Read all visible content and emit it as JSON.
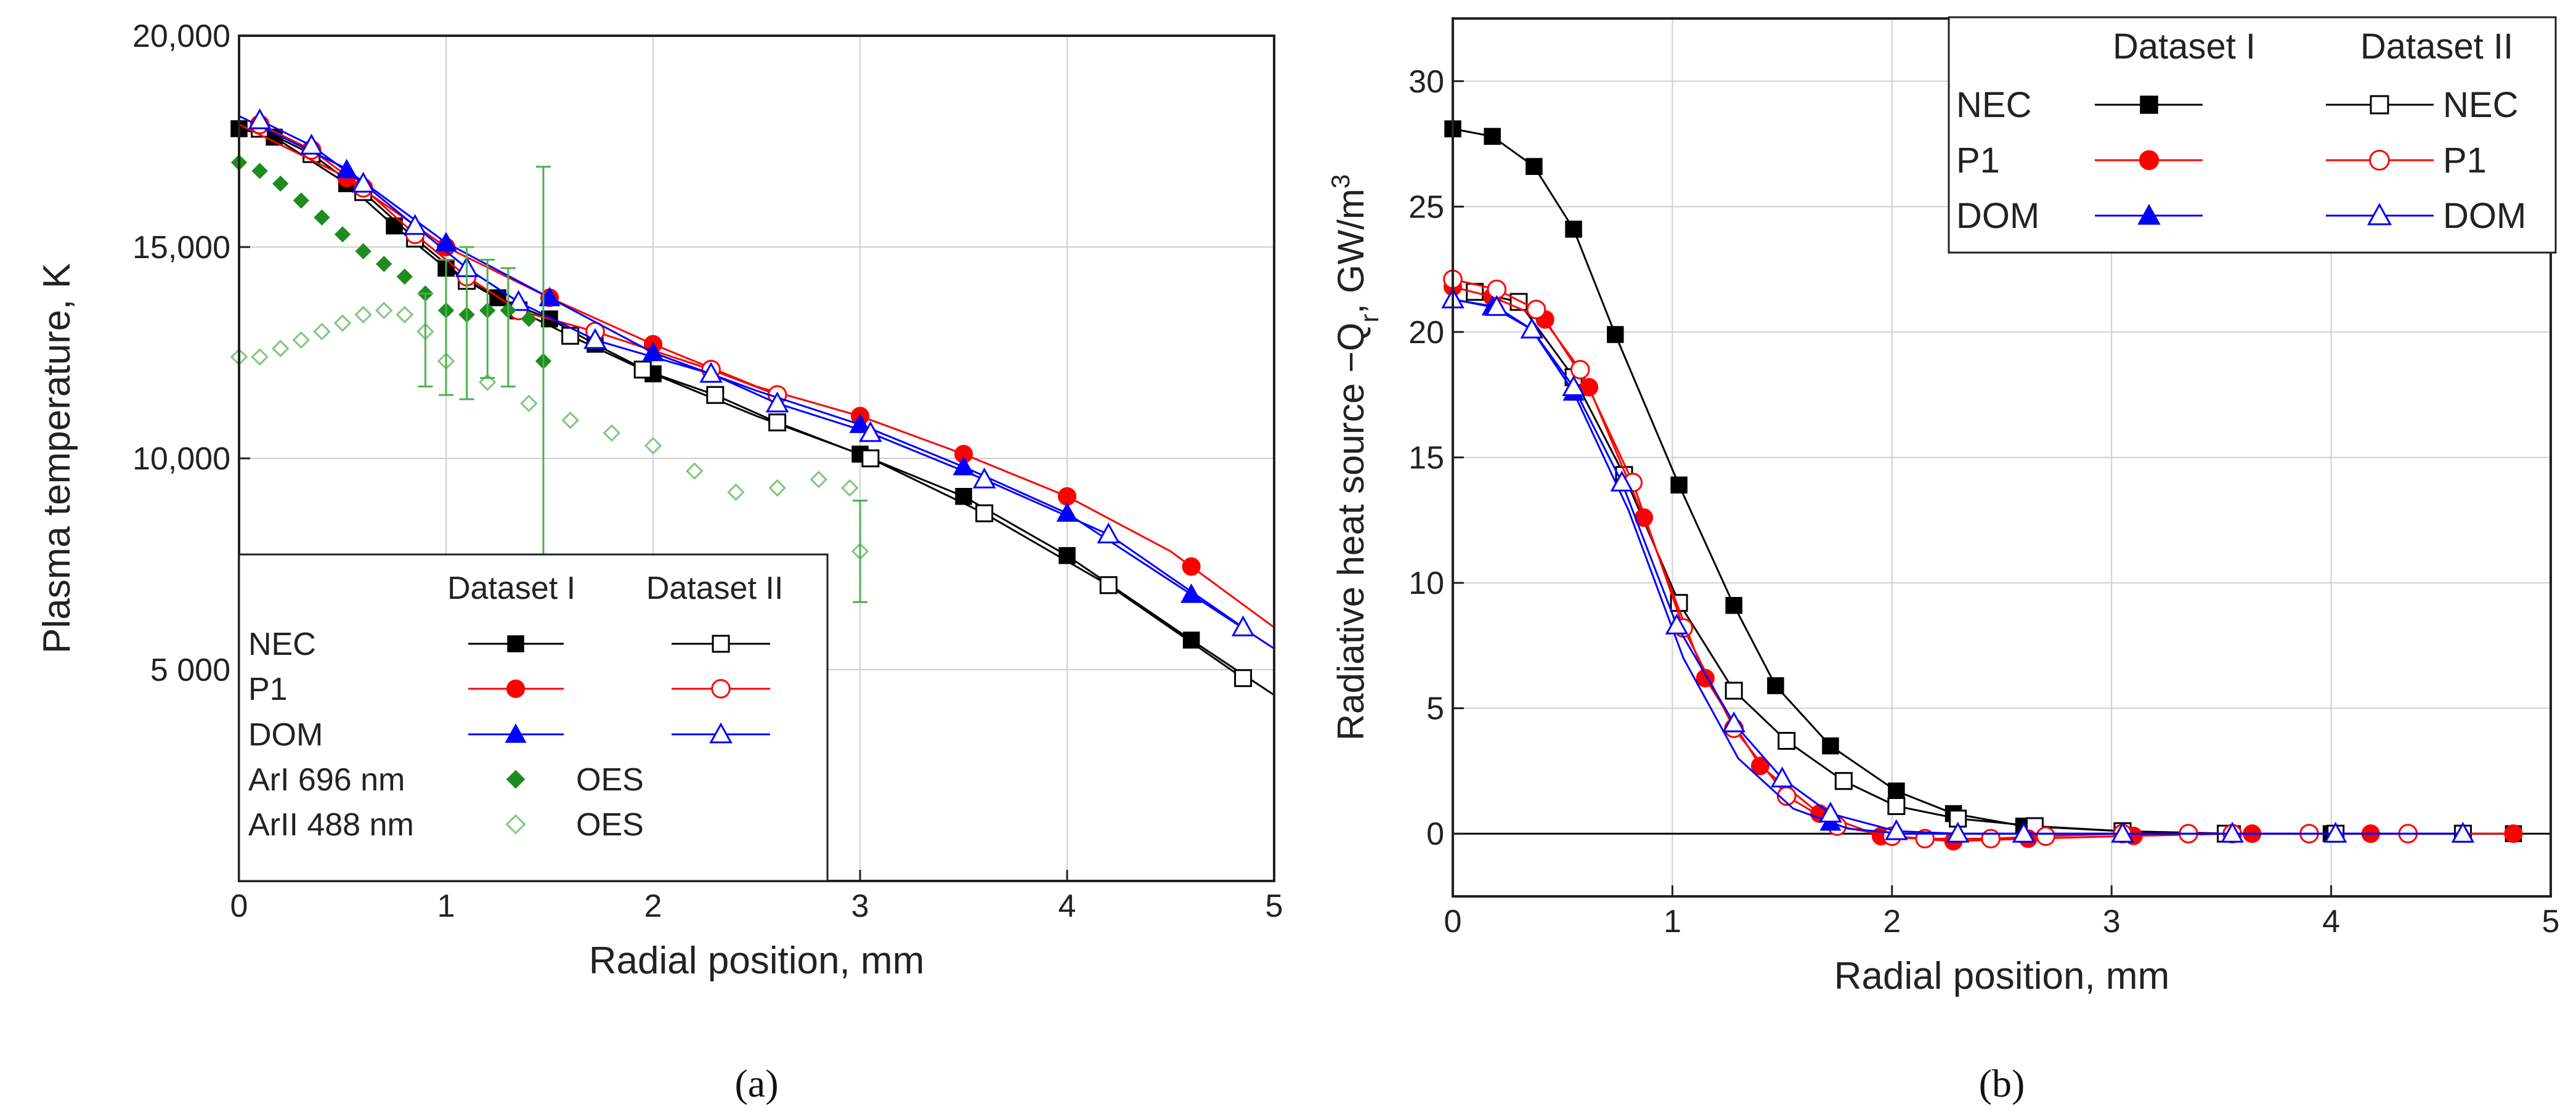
{
  "chart_data": [
    {
      "type": "line",
      "panel_label": "(a)",
      "xlabel": "Radial position, mm",
      "ylabel": "Plasma temperature, K",
      "xlim": [
        0,
        5
      ],
      "ylim": [
        0,
        20000
      ],
      "x_ticks": [
        "0",
        "1",
        "2",
        "3",
        "4",
        "5"
      ],
      "y_ticks": [
        {
          "value": 5000,
          "label": "5 000"
        },
        {
          "value": 10000,
          "label": "10,000"
        },
        {
          "value": 15000,
          "label": "15,000"
        },
        {
          "value": 20000,
          "label": "20,000"
        }
      ],
      "grid": true,
      "legend": {
        "position": "bottom-left",
        "header": [
          "Dataset I",
          "Dataset II"
        ],
        "rows": [
          "NEC",
          "P1",
          "DOM",
          "ArI 696 nm",
          "ArII 488 nm"
        ],
        "oes_label": "OES"
      },
      "series": [
        {
          "name": "NEC (Dataset I)",
          "color": "#000000",
          "marker": "square-filled",
          "x": [
            0,
            0.17,
            0.52,
            0.75,
            1.0,
            1.25,
            1.5,
            1.72,
            2.0,
            2.5,
            3.0,
            3.5,
            4.0,
            4.6,
            5.0
          ],
          "y": [
            17800,
            17600,
            16500,
            15500,
            14500,
            13800,
            13300,
            12700,
            12000,
            11000,
            10100,
            9100,
            7700,
            5700,
            4400
          ],
          "markers_x": [
            0,
            0.17,
            0.52,
            0.75,
            1.0,
            1.25,
            1.5,
            1.72,
            2.0,
            3.0,
            3.5,
            4.0,
            4.6
          ]
        },
        {
          "name": "NEC (Dataset II)",
          "color": "#000000",
          "marker": "square-open",
          "x": [
            0.1,
            0.35,
            0.6,
            0.85,
            1.1,
            1.35,
            1.6,
            1.95,
            2.3,
            2.6,
            3.05,
            3.6,
            4.2,
            4.85
          ],
          "y": [
            17800,
            17200,
            16300,
            15200,
            14200,
            13500,
            12900,
            12100,
            11500,
            10850,
            10000,
            8700,
            7000,
            4800
          ]
        },
        {
          "name": "P1 (Dataset I)",
          "color": "#ff0000",
          "marker": "circle-filled",
          "x": [
            0,
            0.5,
            1.0,
            1.5,
            2.0,
            2.5,
            3.0,
            3.5,
            4.0,
            4.5,
            5.0
          ],
          "y": [
            17900,
            16700,
            15000,
            13800,
            12700,
            11700,
            11000,
            10100,
            9100,
            7800,
            6000
          ],
          "markers_x": [
            0.52,
            1.0,
            1.5,
            2.0,
            3.0,
            3.5,
            4.0,
            4.6
          ]
        },
        {
          "name": "P1 (Dataset II)",
          "color": "#ff0000",
          "marker": "circle-open",
          "x": [
            0.1,
            0.35,
            0.6,
            0.85,
            1.1,
            1.35,
            1.72,
            2.28,
            2.6
          ],
          "y": [
            17900,
            17300,
            16400,
            15300,
            14300,
            13500,
            13000,
            12100,
            11500
          ]
        },
        {
          "name": "DOM (Dataset I)",
          "color": "#0000ff",
          "marker": "triangle-filled",
          "x": [
            0,
            0.5,
            1.0,
            1.5,
            2.0,
            2.5,
            3.0,
            3.5,
            4.0,
            4.5,
            5.0
          ],
          "y": [
            18100,
            16900,
            15100,
            13800,
            12500,
            11600,
            10800,
            9800,
            8700,
            7100,
            5500
          ],
          "markers_x": [
            0.52,
            1.0,
            1.5,
            2.0,
            3.0,
            3.5,
            4.0,
            4.6
          ]
        },
        {
          "name": "DOM (Dataset II)",
          "color": "#0000ff",
          "marker": "triangle-open",
          "x": [
            0.1,
            0.35,
            0.6,
            0.85,
            1.1,
            1.35,
            1.72,
            2.28,
            2.6,
            3.05,
            3.6,
            4.2,
            4.85
          ],
          "y": [
            18000,
            17400,
            16500,
            15500,
            14500,
            13700,
            12800,
            12000,
            11300,
            10600,
            9500,
            8200,
            6000
          ]
        },
        {
          "name": "ArI 696 nm OES",
          "color": "#1e8c1e",
          "marker": "diamond-filled",
          "x": [
            0,
            0.1,
            0.2,
            0.3,
            0.4,
            0.5,
            0.6,
            0.7,
            0.8,
            0.9,
            1.0,
            1.1,
            1.2,
            1.3,
            1.4,
            1.47
          ],
          "y": [
            17000,
            16800,
            16500,
            16100,
            15700,
            15300,
            14900,
            14600,
            14300,
            13900,
            13500,
            13400,
            13500,
            13500,
            13300,
            12300
          ]
        },
        {
          "name": "ArII 488 nm OES",
          "color": "#7ec87e",
          "marker": "diamond-open",
          "x": [
            0,
            0.1,
            0.2,
            0.3,
            0.4,
            0.5,
            0.6,
            0.7,
            0.8,
            0.9,
            1.0,
            1.2,
            1.4,
            1.6,
            1.8,
            2.0,
            2.2,
            2.4,
            2.6,
            2.8,
            2.95,
            3.0
          ],
          "y": [
            12400,
            12400,
            12600,
            12800,
            13000,
            13200,
            13400,
            13500,
            13400,
            13000,
            12300,
            11800,
            11300,
            10900,
            10600,
            10300,
            9700,
            9200,
            9300,
            9500,
            9300,
            7800
          ]
        }
      ],
      "error_bars": [
        {
          "x": 0.9,
          "y": 12800,
          "err": 1100
        },
        {
          "x": 1.0,
          "y": 13100,
          "err": 1600
        },
        {
          "x": 1.1,
          "y": 13200,
          "err": 1800
        },
        {
          "x": 1.2,
          "y": 13300,
          "err": 1400
        },
        {
          "x": 1.3,
          "y": 13100,
          "err": 1400
        },
        {
          "x": 1.47,
          "y": 12300,
          "err": 4600
        },
        {
          "x": 3.0,
          "y": 7800,
          "err": 1200
        }
      ]
    },
    {
      "type": "line",
      "panel_label": "(b)",
      "xlabel": "Radial position, mm",
      "ylabel_parts": [
        "Radiative heat source −Q",
        "r",
        ", GW/m",
        "3"
      ],
      "xlim": [
        0,
        5
      ],
      "ylim": [
        -2.5,
        32.5
      ],
      "x_ticks": [
        "0",
        "1",
        "2",
        "3",
        "4",
        "5"
      ],
      "y_ticks": [
        "0",
        "5",
        "10",
        "15",
        "20",
        "25",
        "30"
      ],
      "grid": true,
      "legend": {
        "position": "top-right",
        "header": [
          "Dataset I",
          "Dataset II"
        ],
        "rows": [
          "NEC",
          "P1",
          "DOM"
        ]
      },
      "series": [
        {
          "name": "NEC (Dataset I)",
          "color": "#000000",
          "marker": "square-filled",
          "x": [
            0,
            0.18,
            0.37,
            0.55,
            0.74,
            1.03,
            1.28,
            1.47,
            1.72,
            2.02,
            2.28,
            2.6,
            3.05,
            3.55,
            4.0,
            4.6,
            4.83
          ],
          "y": [
            28.1,
            27.8,
            26.6,
            24.1,
            19.9,
            13.9,
            9.1,
            5.9,
            3.5,
            1.7,
            0.8,
            0.3,
            0.1,
            0.0,
            0.0,
            0.0,
            0.0
          ]
        },
        {
          "name": "NEC (Dataset II)",
          "color": "#000000",
          "marker": "square-open",
          "x": [
            0.1,
            0.3,
            0.55,
            0.78,
            1.03,
            1.28,
            1.52,
            1.78,
            2.02,
            2.3,
            2.65,
            3.05,
            3.52,
            4.02,
            4.6
          ],
          "y": [
            21.6,
            21.2,
            18.2,
            14.3,
            9.2,
            5.7,
            3.7,
            2.1,
            1.1,
            0.6,
            0.3,
            0.1,
            0.0,
            0.0,
            0.0
          ]
        },
        {
          "name": "P1 (Dataset I)",
          "color": "#ff0000",
          "marker": "circle-filled",
          "x": [
            0,
            0.18,
            0.42,
            0.62,
            0.87,
            1.15,
            1.4,
            1.67,
            1.95,
            2.28,
            2.62,
            3.05,
            3.55,
            4.0,
            4.6,
            4.83
          ],
          "y": [
            21.8,
            21.4,
            20.5,
            17.8,
            12.6,
            6.2,
            2.7,
            0.8,
            -0.1,
            -0.3,
            -0.2,
            -0.1,
            0.0,
            0.0,
            0.0,
            0.0
          ],
          "markers_x": [
            0,
            0.18,
            0.42,
            0.62,
            0.87,
            1.15,
            1.4,
            1.67,
            1.95,
            2.28,
            2.62,
            3.1,
            3.64,
            4.18,
            4.83
          ]
        },
        {
          "name": "P1 (Dataset II)",
          "color": "#ff0000",
          "marker": "circle-open",
          "x": [
            0,
            0.2,
            0.38,
            0.58,
            0.82,
            1.05,
            1.28,
            1.52,
            1.75,
            2.0,
            2.15,
            2.45,
            2.7,
            3.05,
            3.35,
            3.55,
            3.9,
            4.35
          ],
          "y": [
            22.1,
            21.7,
            20.9,
            18.5,
            14.0,
            8.2,
            4.2,
            1.5,
            0.3,
            -0.1,
            -0.2,
            -0.2,
            -0.1,
            0.0,
            0.0,
            0.0,
            0.0,
            0.0
          ]
        },
        {
          "name": "DOM (Dataset I)",
          "color": "#0000ff",
          "marker": "triangle-filled",
          "x": [
            0,
            0.18,
            0.36,
            0.55,
            0.8,
            1.05,
            1.3,
            1.55,
            1.8,
            2.05,
            2.3,
            2.62,
            3.05,
            3.55,
            4.0,
            4.6
          ],
          "y": [
            21.3,
            21.0,
            20.1,
            17.6,
            12.9,
            7.0,
            3.0,
            1.0,
            0.2,
            0.0,
            0.0,
            0.0,
            0.0,
            0.0,
            0.0,
            0.0
          ],
          "markers_x": [
            0,
            0.18,
            0.36,
            0.55,
            1.72
          ]
        },
        {
          "name": "DOM (Dataset II)",
          "color": "#0000ff",
          "marker": "triangle-open",
          "x": [
            0,
            0.2,
            0.36,
            0.55,
            0.77,
            1.02,
            1.28,
            1.5,
            1.72,
            2.02,
            2.3,
            2.6,
            3.05,
            3.55,
            4.02,
            4.6
          ],
          "y": [
            21.3,
            21.0,
            20.1,
            17.8,
            14.0,
            8.3,
            4.4,
            2.2,
            0.8,
            0.1,
            0.0,
            0.0,
            0.0,
            0.0,
            0.0,
            0.0
          ]
        }
      ]
    }
  ]
}
